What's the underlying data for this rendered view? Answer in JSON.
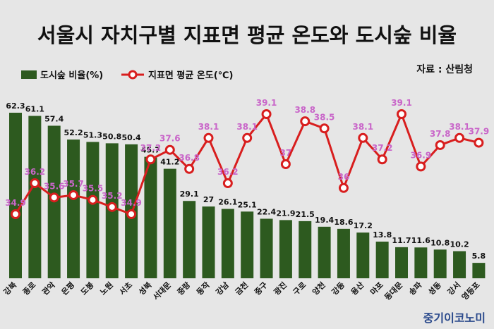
{
  "chart_data": {
    "type": "bar",
    "title": "서울시 자치구별 지표면 평균 온도와 도시숲 비율",
    "source": "자료 : 산림청",
    "brand": "중기이코노미",
    "colors": {
      "bar": "#2d5a1f",
      "line": "#d81e1e",
      "line_label": "#c966c9",
      "background": "#e6e6e6"
    },
    "categories": [
      "강북",
      "종로",
      "관악",
      "은평",
      "도봉",
      "노원",
      "서초",
      "성북",
      "서대문",
      "중랑",
      "동작",
      "강남",
      "금천",
      "중구",
      "광진",
      "구로",
      "양천",
      "강동",
      "용산",
      "마포",
      "동대문",
      "송파",
      "성동",
      "강서",
      "영등포"
    ],
    "series": [
      {
        "name": "도시숲 비율(%)",
        "type": "bar",
        "values": [
          62.3,
          61.1,
          57.4,
          52.2,
          51.3,
          50.8,
          50.4,
          45.7,
          41.2,
          29.1,
          27,
          26.1,
          25.1,
          22.4,
          21.9,
          21.5,
          19.4,
          18.6,
          17.2,
          13.8,
          11.7,
          11.6,
          10.8,
          10.2,
          5.8
        ],
        "labels": [
          "62.3",
          "61.1",
          "57.4",
          "52.2",
          "51.3",
          "50.8",
          "50.4",
          "45.7",
          "41.2",
          "29.1",
          "27",
          "26.1",
          "25.1",
          "22.4",
          "21.9",
          "21.5",
          "19.4",
          "18.6",
          "17.2",
          "13.8",
          "11.7",
          "11.6",
          "10.8",
          "10.2",
          "5.8"
        ]
      },
      {
        "name": "지표면 평균 온도(℃)",
        "type": "line",
        "values": [
          34.9,
          36.2,
          35.6,
          35.7,
          35.5,
          35.2,
          34.9,
          37.2,
          37.6,
          36.8,
          38.1,
          36.2,
          38.1,
          39.1,
          37,
          38.8,
          38.5,
          36,
          38.1,
          37.2,
          39.1,
          36.9,
          37.8,
          38.1,
          37.9
        ],
        "labels": [
          "34.9",
          "36.2",
          "35.6",
          "35.7",
          "35.5",
          "35.2",
          "34.9",
          "37.2",
          "37.6",
          "36.8",
          "38.1",
          "36.2",
          "38.1",
          "39.1",
          "37",
          "38.8",
          "38.5",
          "36",
          "38.1",
          "37.2",
          "39.1",
          "36.9",
          "37.8",
          "38.1",
          "37.9"
        ]
      }
    ],
    "bar_ylim": [
      0,
      65
    ],
    "line_ylim": [
      32.5,
      40.5
    ],
    "grid": false,
    "legend_position": "top-left"
  }
}
